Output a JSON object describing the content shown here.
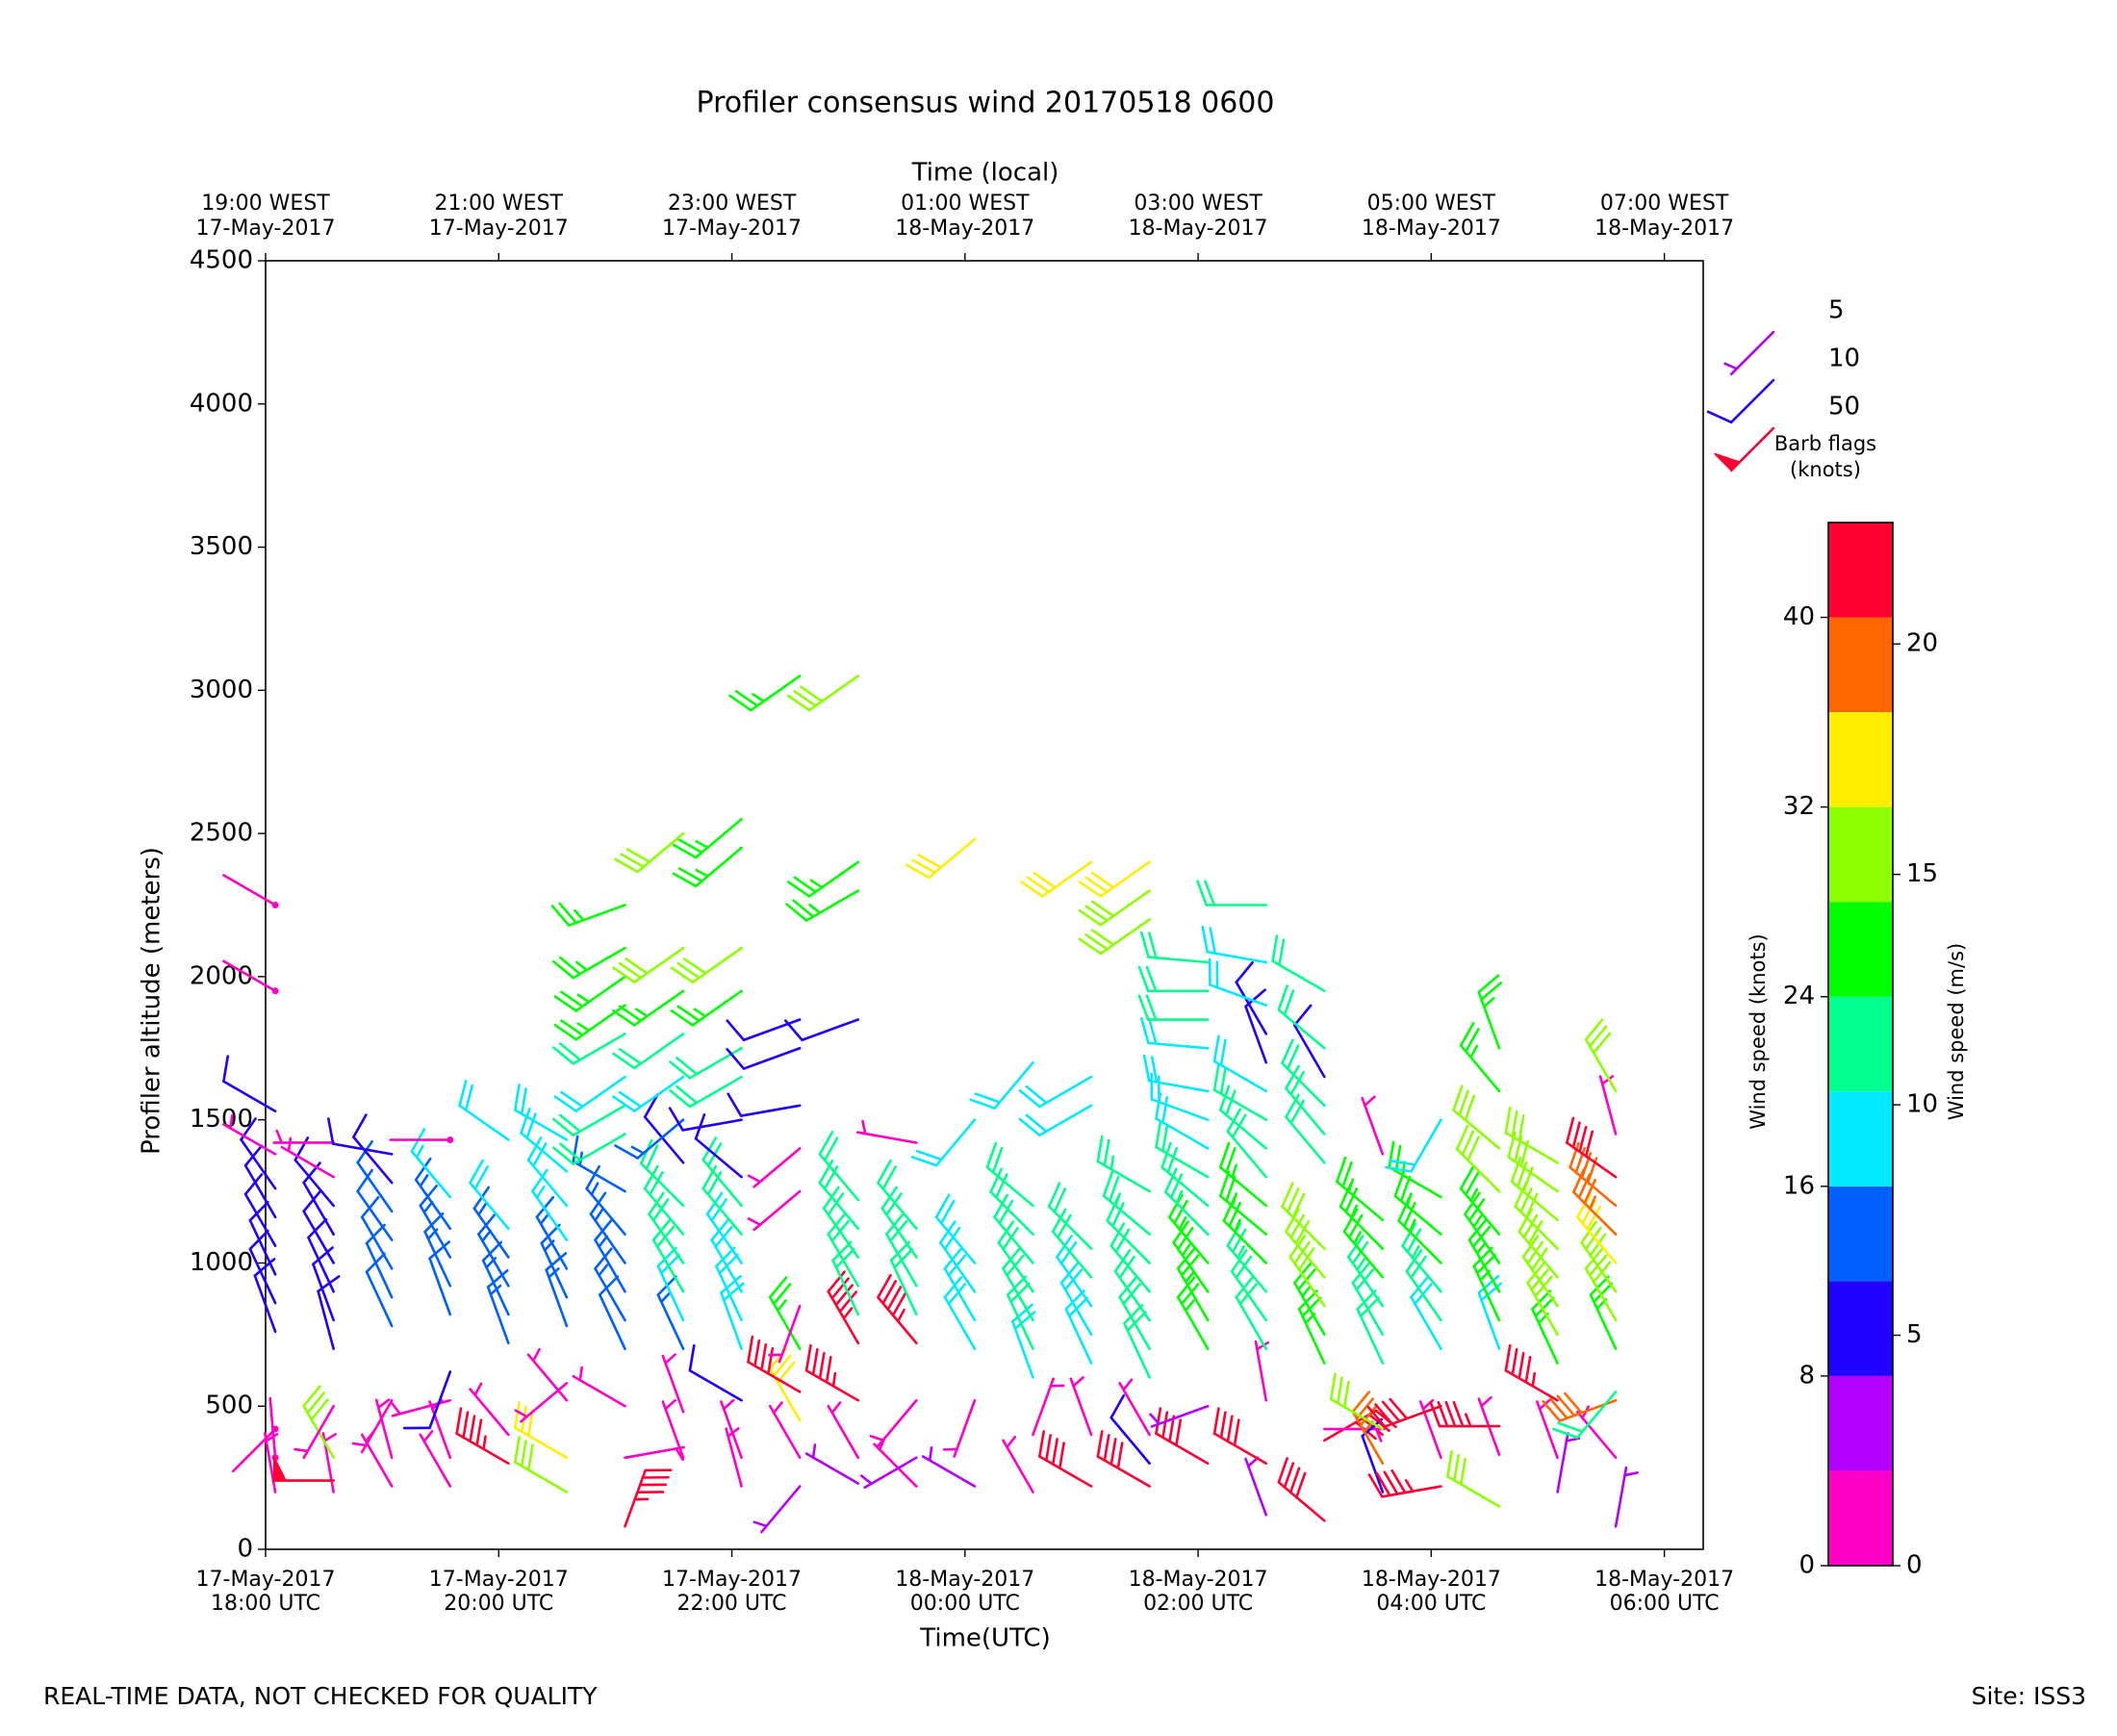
{
  "chart_data": {
    "type": "barbs",
    "title": "Profiler consensus wind 20170518 0600",
    "xlabel": "Time(UTC)",
    "x2label": "Time (local)",
    "ylabel": "Profiler altitude (meters)",
    "footer_left": "REAL-TIME DATA, NOT CHECKED FOR QUALITY",
    "footer_right": "Site: ISS3",
    "xlim": [
      "2017-05-17 18:00",
      "2017-05-18 06:20"
    ],
    "xticks": [
      {
        "value": "2017-05-17 18:00",
        "label": [
          "17-May-2017",
          "18:00 UTC"
        ]
      },
      {
        "value": "2017-05-17 20:00",
        "label": [
          "17-May-2017",
          "20:00 UTC"
        ]
      },
      {
        "value": "2017-05-17 22:00",
        "label": [
          "17-May-2017",
          "22:00 UTC"
        ]
      },
      {
        "value": "2017-05-18 00:00",
        "label": [
          "18-May-2017",
          "00:00 UTC"
        ]
      },
      {
        "value": "2017-05-18 02:00",
        "label": [
          "18-May-2017",
          "02:00 UTC"
        ]
      },
      {
        "value": "2017-05-18 04:00",
        "label": [
          "18-May-2017",
          "04:00 UTC"
        ]
      },
      {
        "value": "2017-05-18 06:00",
        "label": [
          "18-May-2017",
          "06:00 UTC"
        ]
      }
    ],
    "x2ticks": [
      {
        "value": "2017-05-17 18:00",
        "label": [
          "19:00 WEST",
          "17-May-2017"
        ]
      },
      {
        "value": "2017-05-17 20:00",
        "label": [
          "21:00 WEST",
          "17-May-2017"
        ]
      },
      {
        "value": "2017-05-17 22:00",
        "label": [
          "23:00 WEST",
          "17-May-2017"
        ]
      },
      {
        "value": "2017-05-18 00:00",
        "label": [
          "01:00 WEST",
          "18-May-2017"
        ]
      },
      {
        "value": "2017-05-18 02:00",
        "label": [
          "03:00 WEST",
          "18-May-2017"
        ]
      },
      {
        "value": "2017-05-18 04:00",
        "label": [
          "05:00 WEST",
          "18-May-2017"
        ]
      },
      {
        "value": "2017-05-18 06:00",
        "label": [
          "07:00 WEST",
          "18-May-2017"
        ]
      }
    ],
    "ylim": [
      0,
      4500
    ],
    "yticks": [
      0,
      500,
      1000,
      1500,
      2000,
      2500,
      3000,
      3500,
      4000,
      4500
    ],
    "barb_legend": {
      "title": [
        "Barb flags",
        "(knots)"
      ],
      "speeds": [
        5,
        10,
        50
      ],
      "colors": [
        "#b000ff",
        "#2000ff",
        "#ff0033"
      ]
    },
    "colorbar": {
      "label": "Wind speed (knots)",
      "label2": "Wind speed (m/s)",
      "levels": [
        0,
        4,
        8,
        12,
        16,
        20,
        24,
        28,
        32,
        36,
        40,
        44
      ],
      "colors": [
        "#ff00c8",
        "#b400ff",
        "#2000ff",
        "#0060ff",
        "#00eaff",
        "#00ff8c",
        "#00ff00",
        "#8cff00",
        "#ffee00",
        "#ff6600",
        "#ff0033"
      ],
      "ylim": [
        0,
        44
      ],
      "yticks": [
        0,
        8,
        16,
        24,
        32,
        40
      ],
      "y2lim": [
        0,
        22.635
      ],
      "y2ticks": [
        0,
        5,
        10,
        15,
        20
      ]
    },
    "profiles": [
      {
        "time": "2017-05-17 18:05",
        "altitude": [
          200,
          320,
          420,
          760,
          860,
          960,
          1060,
          1160,
          1260,
          1380,
          1530,
          1950,
          2250
        ],
        "speed": [
          3,
          2,
          2,
          10,
          10,
          11,
          11,
          10,
          10,
          3,
          9,
          2,
          2
        ],
        "direction": [
          350,
          355,
          225,
          340,
          335,
          335,
          330,
          330,
          325,
          300,
          300,
          300,
          300
        ]
      },
      {
        "time": "2017-05-17 18:35",
        "altitude": [
          200,
          240,
          320,
          500,
          700,
          800,
          900,
          1000,
          1100,
          1200,
          1300,
          1420
        ],
        "speed": [
          3,
          48,
          28,
          3,
          9,
          10,
          10,
          11,
          11,
          10,
          3,
          3
        ],
        "direction": [
          350,
          270,
          330,
          210,
          345,
          340,
          335,
          330,
          330,
          320,
          300,
          270
        ]
      },
      {
        "time": "2017-05-17 19:05",
        "altitude": [
          220,
          320,
          520,
          780,
          880,
          980,
          1080,
          1180,
          1280,
          1380
        ],
        "speed": [
          3,
          3,
          3,
          12,
          12,
          12,
          12,
          12,
          11,
          10
        ],
        "direction": [
          330,
          345,
          210,
          335,
          335,
          330,
          325,
          325,
          320,
          280
        ]
      },
      {
        "time": "2017-05-17 19:35",
        "altitude": [
          220,
          320,
          520,
          620,
          820,
          920,
          1020,
          1120,
          1230,
          1430
        ],
        "speed": [
          3,
          3,
          3,
          10,
          12,
          13,
          14,
          14,
          16,
          2
        ],
        "direction": [
          330,
          340,
          255,
          200,
          340,
          335,
          330,
          325,
          320,
          270
        ]
      },
      {
        "time": "2017-05-17 20:05",
        "altitude": [
          300,
          400,
          720,
          820,
          920,
          1020,
          1120,
          1430
        ],
        "speed": [
          45,
          3,
          13,
          14,
          14,
          15,
          18,
          18
        ],
        "direction": [
          300,
          320,
          340,
          335,
          330,
          325,
          320,
          305
        ]
      },
      {
        "time": "2017-05-17 20:35",
        "altitude": [
          200,
          320,
          520,
          580,
          780,
          880,
          980,
          1080,
          1200,
          1320,
          1430
        ],
        "speed": [
          30,
          32,
          3,
          3,
          14,
          15,
          15,
          17,
          18,
          19,
          18
        ],
        "direction": [
          300,
          300,
          320,
          230,
          340,
          335,
          330,
          325,
          320,
          310,
          300
        ]
      },
      {
        "time": "2017-05-17 21:05",
        "altitude": [
          80,
          320,
          500,
          700,
          800,
          900,
          1000,
          1100,
          1250,
          1450,
          1550,
          1650,
          1800,
          1900,
          2000,
          2100,
          2250
        ],
        "speed": [
          46,
          3,
          3,
          12,
          13,
          13,
          14,
          14,
          15,
          20,
          20,
          19,
          20,
          26,
          25,
          26,
          26
        ],
        "direction": [
          20,
          80,
          300,
          335,
          330,
          330,
          325,
          320,
          300,
          240,
          240,
          235,
          240,
          235,
          235,
          240,
          250
        ]
      },
      {
        "time": "2017-05-17 21:35",
        "altitude": [
          320,
          480,
          700,
          800,
          900,
          1000,
          1100,
          1200,
          1350,
          1500,
          1650,
          1800,
          1950,
          2100,
          2500
        ],
        "speed": [
          3,
          3,
          14,
          18,
          20,
          21,
          22,
          22,
          11,
          14,
          19,
          22,
          24,
          28,
          28
        ],
        "direction": [
          340,
          340,
          335,
          335,
          330,
          325,
          320,
          315,
          320,
          230,
          235,
          235,
          235,
          235,
          230
        ]
      },
      {
        "time": "2017-05-17 22:05",
        "altitude": [
          220,
          320,
          520,
          700,
          800,
          900,
          1000,
          1100,
          1200,
          1300,
          1500,
          1650,
          1750,
          1950,
          2100,
          2450,
          2550
        ],
        "speed": [
          3,
          3,
          10,
          18,
          18,
          19,
          19,
          20,
          20,
          10,
          10,
          20,
          22,
          24,
          28,
          24,
          26
        ],
        "direction": [
          345,
          340,
          300,
          340,
          335,
          330,
          325,
          320,
          320,
          310,
          260,
          240,
          240,
          235,
          235,
          230,
          230
        ]
      },
      {
        "time": "2017-05-17 22:35",
        "altitude": [
          220,
          320,
          450,
          550,
          700,
          850,
          1250,
          1400,
          1550,
          1750,
          1850,
          3050
        ],
        "speed": [
          4,
          3,
          32,
          42,
          24,
          3,
          3,
          3,
          10,
          10,
          10,
          26
        ],
        "direction": [
          220,
          330,
          330,
          300,
          330,
          200,
          230,
          230,
          260,
          250,
          250,
          235
        ]
      },
      {
        "time": "2017-05-17 23:05",
        "altitude": [
          230,
          320,
          520,
          720,
          820,
          920,
          1020,
          1120,
          1220,
          1850,
          2300,
          2400,
          3050
        ],
        "speed": [
          4,
          3,
          44,
          44,
          22,
          22,
          21,
          21,
          21,
          10,
          25,
          26,
          28
        ],
        "direction": [
          300,
          330,
          300,
          330,
          335,
          330,
          325,
          320,
          320,
          250,
          240,
          235,
          235
        ]
      },
      {
        "time": "2017-05-17 23:35",
        "altitude": [
          220,
          320,
          520,
          720,
          820,
          920,
          1020,
          1120,
          1420
        ],
        "speed": [
          3,
          4,
          3,
          44,
          22,
          22,
          21,
          21,
          3
        ],
        "direction": [
          315,
          240,
          220,
          320,
          335,
          330,
          325,
          320,
          280
        ]
      },
      {
        "time": "2017-05-18 00:05",
        "altitude": [
          220,
          520,
          700,
          800,
          900,
          1000,
          1500,
          2480
        ],
        "speed": [
          6,
          3,
          19,
          19,
          18,
          18,
          18,
          32
        ],
        "direction": [
          300,
          200,
          330,
          330,
          325,
          320,
          220,
          230
        ]
      },
      {
        "time": "2017-05-18 00:35",
        "altitude": [
          200,
          400,
          600,
          700,
          800,
          900,
          1000,
          1100,
          1200,
          1700
        ],
        "speed": [
          3,
          3,
          19,
          20,
          21,
          21,
          21,
          22,
          22,
          19
        ],
        "direction": [
          330,
          20,
          340,
          335,
          330,
          325,
          320,
          315,
          310,
          220
        ]
      },
      {
        "time": "2017-05-18 01:05",
        "altitude": [
          220,
          400,
          650,
          750,
          850,
          950,
          1050,
          1550,
          1650,
          2400
        ],
        "speed": [
          40,
          3,
          18,
          19,
          19,
          20,
          21,
          19,
          19,
          32
        ],
        "direction": [
          300,
          340,
          335,
          330,
          325,
          320,
          315,
          240,
          240,
          235
        ]
      },
      {
        "time": "2017-05-18 01:35",
        "altitude": [
          220,
          300,
          400,
          600,
          700,
          800,
          900,
          1000,
          1100,
          1250,
          2200,
          2300,
          2400
        ],
        "speed": [
          42,
          10,
          3,
          21,
          21,
          22,
          22,
          22,
          23,
          23,
          28,
          28,
          32
        ],
        "direction": [
          300,
          320,
          330,
          335,
          330,
          325,
          320,
          315,
          310,
          300,
          235,
          235,
          235
        ]
      },
      {
        "time": "2017-05-18 02:05",
        "altitude": [
          300,
          500,
          700,
          800,
          900,
          1000,
          1100,
          1200,
          1300,
          1400,
          1500,
          1600,
          1750,
          1850,
          1950,
          2050
        ],
        "speed": [
          40,
          4,
          26,
          25,
          24,
          24,
          23,
          22,
          22,
          19,
          19,
          19,
          19,
          20,
          20,
          20
        ],
        "direction": [
          300,
          250,
          330,
          330,
          325,
          320,
          315,
          310,
          300,
          300,
          290,
          280,
          275,
          270,
          270,
          275
        ]
      },
      {
        "time": "2017-05-18 02:35",
        "altitude": [
          120,
          300,
          520,
          700,
          800,
          900,
          1000,
          1100,
          1200,
          1300,
          1400,
          1500,
          1600,
          1700,
          1800,
          1900,
          2050,
          2250
        ],
        "speed": [
          4,
          40,
          3,
          21,
          22,
          23,
          24,
          25,
          26,
          22,
          22,
          22,
          19,
          10,
          10,
          19,
          19,
          20
        ],
        "direction": [
          340,
          300,
          350,
          330,
          325,
          320,
          315,
          310,
          310,
          320,
          310,
          300,
          300,
          340,
          330,
          290,
          280,
          270
        ]
      },
      {
        "time": "2017-05-18 03:05",
        "altitude": [
          100,
          380,
          420,
          650,
          750,
          850,
          950,
          1050,
          1350,
          1450,
          1550,
          1650,
          1750,
          1950
        ],
        "speed": [
          42,
          42,
          3,
          26,
          27,
          28,
          28,
          29,
          20,
          20,
          20,
          10,
          20,
          20
        ],
        "direction": [
          310,
          60,
          90,
          335,
          330,
          325,
          320,
          315,
          320,
          320,
          315,
          330,
          310,
          300
        ]
      },
      {
        "time": "2017-05-18 03:35",
        "altitude": [
          200,
          300,
          420,
          650,
          750,
          850,
          950,
          1050,
          1150,
          1380
        ],
        "speed": [
          10,
          36,
          30,
          20,
          22,
          23,
          24,
          25,
          26,
          3
        ],
        "direction": [
          340,
          330,
          300,
          335,
          330,
          325,
          320,
          315,
          310,
          340
        ]
      },
      {
        "time": "2017-05-18 04:05",
        "altitude": [
          220,
          320,
          500,
          700,
          800,
          900,
          1000,
          1100,
          1230,
          1500
        ],
        "speed": [
          45,
          3,
          42,
          18,
          22,
          23,
          24,
          26,
          27,
          19
        ],
        "direction": [
          260,
          340,
          250,
          330,
          325,
          320,
          315,
          310,
          300,
          210
        ]
      },
      {
        "time": "2017-05-18 04:35",
        "altitude": [
          150,
          330,
          430,
          700,
          800,
          900,
          1000,
          1100,
          1250,
          1400,
          1600,
          1750
        ],
        "speed": [
          30,
          3,
          44,
          19,
          25,
          26,
          27,
          27,
          28,
          28,
          26,
          26
        ],
        "direction": [
          300,
          340,
          270,
          340,
          335,
          330,
          325,
          320,
          315,
          310,
          320,
          340
        ]
      },
      {
        "time": "2017-05-18 05:05",
        "altitude": [
          200,
          320,
          520,
          650,
          750,
          850,
          950,
          1050,
          1150,
          1250,
          1350
        ],
        "speed": [
          4,
          3,
          44,
          27,
          28,
          28,
          29,
          30,
          30,
          30,
          29
        ],
        "direction": [
          10,
          340,
          300,
          335,
          330,
          325,
          320,
          315,
          310,
          305,
          300
        ]
      },
      {
        "time": "2017-05-18 05:35",
        "altitude": [
          80,
          320,
          520,
          550,
          700,
          800,
          900,
          1000,
          1100,
          1200,
          1300,
          1450,
          1600
        ],
        "speed": [
          6,
          3,
          39,
          22,
          26,
          28,
          30,
          32,
          36,
          38,
          40,
          3,
          30
        ],
        "direction": [
          10,
          320,
          250,
          220,
          335,
          330,
          325,
          320,
          315,
          310,
          305,
          345,
          330
        ]
      }
    ]
  }
}
